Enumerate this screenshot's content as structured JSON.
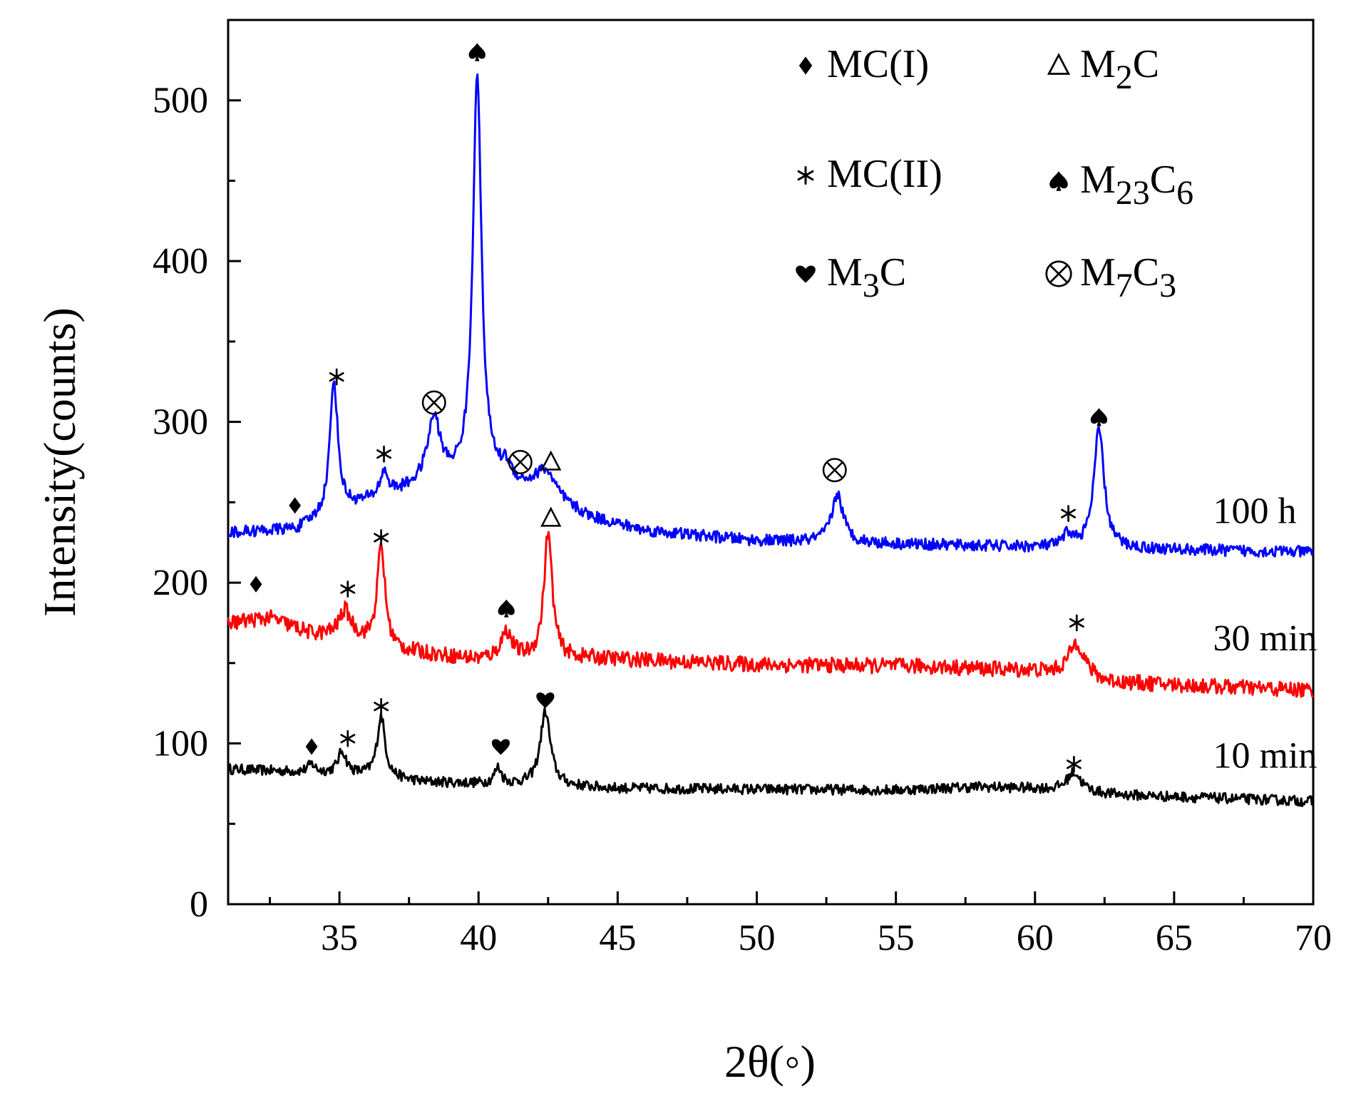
{
  "chart_data": {
    "type": "line",
    "title": "",
    "xlabel": "2θ(◦)",
    "ylabel": "Intensity(counts)",
    "xlim": [
      31,
      70
    ],
    "ylim": [
      0,
      550
    ],
    "xticks": [
      35,
      40,
      45,
      50,
      55,
      60,
      65,
      70
    ],
    "yticks": [
      0,
      100,
      200,
      300,
      400,
      500
    ],
    "series": [
      {
        "name": "10 min",
        "color": "#000000",
        "baseline": [
          [
            31,
            84
          ],
          [
            34,
            82
          ],
          [
            36,
            80
          ],
          [
            38,
            76
          ],
          [
            42,
            74
          ],
          [
            45,
            72
          ],
          [
            55,
            71
          ],
          [
            58,
            73
          ],
          [
            60,
            72
          ],
          [
            63,
            68
          ],
          [
            70,
            64
          ]
        ],
        "peaks": [
          [
            34,
            5,
            0.15
          ],
          [
            35.1,
            14,
            0.18
          ],
          [
            36.5,
            38,
            0.17
          ],
          [
            40.7,
            10,
            0.15
          ],
          [
            42.4,
            46,
            0.22
          ],
          [
            61.4,
            12,
            0.3
          ]
        ],
        "noise": 3.2
      },
      {
        "name": "30 min",
        "color": "#ff0000",
        "baseline": [
          [
            31,
            175
          ],
          [
            32.5,
            178
          ],
          [
            34,
            168
          ],
          [
            35.5,
            166
          ],
          [
            37,
            158
          ],
          [
            40,
            152
          ],
          [
            44,
            153
          ],
          [
            50,
            149
          ],
          [
            56,
            148
          ],
          [
            60,
            145
          ],
          [
            62.5,
            138
          ],
          [
            70,
            133
          ]
        ],
        "peaks": [
          [
            35.2,
            16,
            0.25
          ],
          [
            36.5,
            62,
            0.17
          ],
          [
            41.0,
            17,
            0.25
          ],
          [
            42.5,
            78,
            0.18
          ],
          [
            61.5,
            22,
            0.35
          ]
        ],
        "noise": 4.8
      },
      {
        "name": "100 h",
        "color": "#0000ff",
        "baseline": [
          [
            31,
            231
          ],
          [
            33.5,
            233
          ],
          [
            35,
            245
          ],
          [
            36.5,
            252
          ],
          [
            38,
            260
          ],
          [
            38.8,
            262
          ],
          [
            40,
            268
          ],
          [
            41,
            262
          ],
          [
            42.3,
            252
          ],
          [
            44,
            240
          ],
          [
            46,
            232
          ],
          [
            50,
            226
          ],
          [
            55,
            224
          ],
          [
            60,
            222
          ],
          [
            63,
            221
          ],
          [
            70,
            219
          ]
        ],
        "peaks": [
          [
            34.8,
            82,
            0.17
          ],
          [
            36.6,
            15,
            0.18
          ],
          [
            38.4,
            40,
            0.28
          ],
          [
            39.95,
            250,
            0.18
          ],
          [
            41.0,
            8,
            0.18
          ],
          [
            42.4,
            18,
            0.45
          ],
          [
            52.9,
            30,
            0.25
          ],
          [
            61.2,
            8,
            0.2
          ],
          [
            62.3,
            74,
            0.22
          ]
        ],
        "noise": 3.6
      }
    ],
    "curve_labels": [
      {
        "text": "100 h",
        "x": 66.4,
        "y": 237
      },
      {
        "text": "30 min",
        "x": 66.4,
        "y": 158
      },
      {
        "text": "10 min",
        "x": 66.4,
        "y": 85
      }
    ],
    "peak_annotations": [
      {
        "symbol": "diamond",
        "x": 33.4,
        "y": 248
      },
      {
        "symbol": "asterisk",
        "x": 34.9,
        "y": 328
      },
      {
        "symbol": "asterisk",
        "x": 36.6,
        "y": 280
      },
      {
        "symbol": "otimes",
        "x": 38.4,
        "y": 312
      },
      {
        "symbol": "spade",
        "x": 39.95,
        "y": 530
      },
      {
        "symbol": "otimes",
        "x": 41.5,
        "y": 275
      },
      {
        "symbol": "triangle",
        "x": 42.6,
        "y": 275
      },
      {
        "symbol": "otimes",
        "x": 52.8,
        "y": 270
      },
      {
        "symbol": "asterisk",
        "x": 61.2,
        "y": 243
      },
      {
        "symbol": "spade",
        "x": 62.3,
        "y": 303
      },
      {
        "symbol": "diamond",
        "x": 32.0,
        "y": 199
      },
      {
        "symbol": "asterisk",
        "x": 35.3,
        "y": 196
      },
      {
        "symbol": "asterisk",
        "x": 36.5,
        "y": 228
      },
      {
        "symbol": "spade",
        "x": 41.0,
        "y": 184
      },
      {
        "symbol": "triangle",
        "x": 42.6,
        "y": 240
      },
      {
        "symbol": "asterisk",
        "x": 61.5,
        "y": 175
      },
      {
        "symbol": "diamond",
        "x": 34.0,
        "y": 98
      },
      {
        "symbol": "asterisk",
        "x": 35.3,
        "y": 103
      },
      {
        "symbol": "asterisk",
        "x": 36.5,
        "y": 123
      },
      {
        "symbol": "heart",
        "x": 40.8,
        "y": 98
      },
      {
        "symbol": "heart",
        "x": 42.4,
        "y": 127
      },
      {
        "symbol": "asterisk",
        "x": 61.4,
        "y": 87
      }
    ],
    "legend": {
      "placement": "top-right",
      "entries": [
        {
          "symbol": "diamond",
          "label": "MC(I)",
          "base": "MC(I)",
          "sub1": "",
          "mid": "",
          "sub2": ""
        },
        {
          "symbol": "triangle",
          "label": "M2C",
          "base": "M",
          "sub1": "2",
          "mid": "C",
          "sub2": ""
        },
        {
          "symbol": "asterisk",
          "label": "MC(II)",
          "base": "MC(II)",
          "sub1": "",
          "mid": "",
          "sub2": ""
        },
        {
          "symbol": "spade",
          "label": "M23C6",
          "base": "M",
          "sub1": "23",
          "mid": "C",
          "sub2": "6"
        },
        {
          "symbol": "heart",
          "label": "M3C",
          "base": "M",
          "sub1": "3",
          "mid": "C",
          "sub2": ""
        },
        {
          "symbol": "otimes",
          "label": "M7C3",
          "base": "M",
          "sub1": "7",
          "mid": "C",
          "sub2": "3"
        }
      ]
    }
  }
}
